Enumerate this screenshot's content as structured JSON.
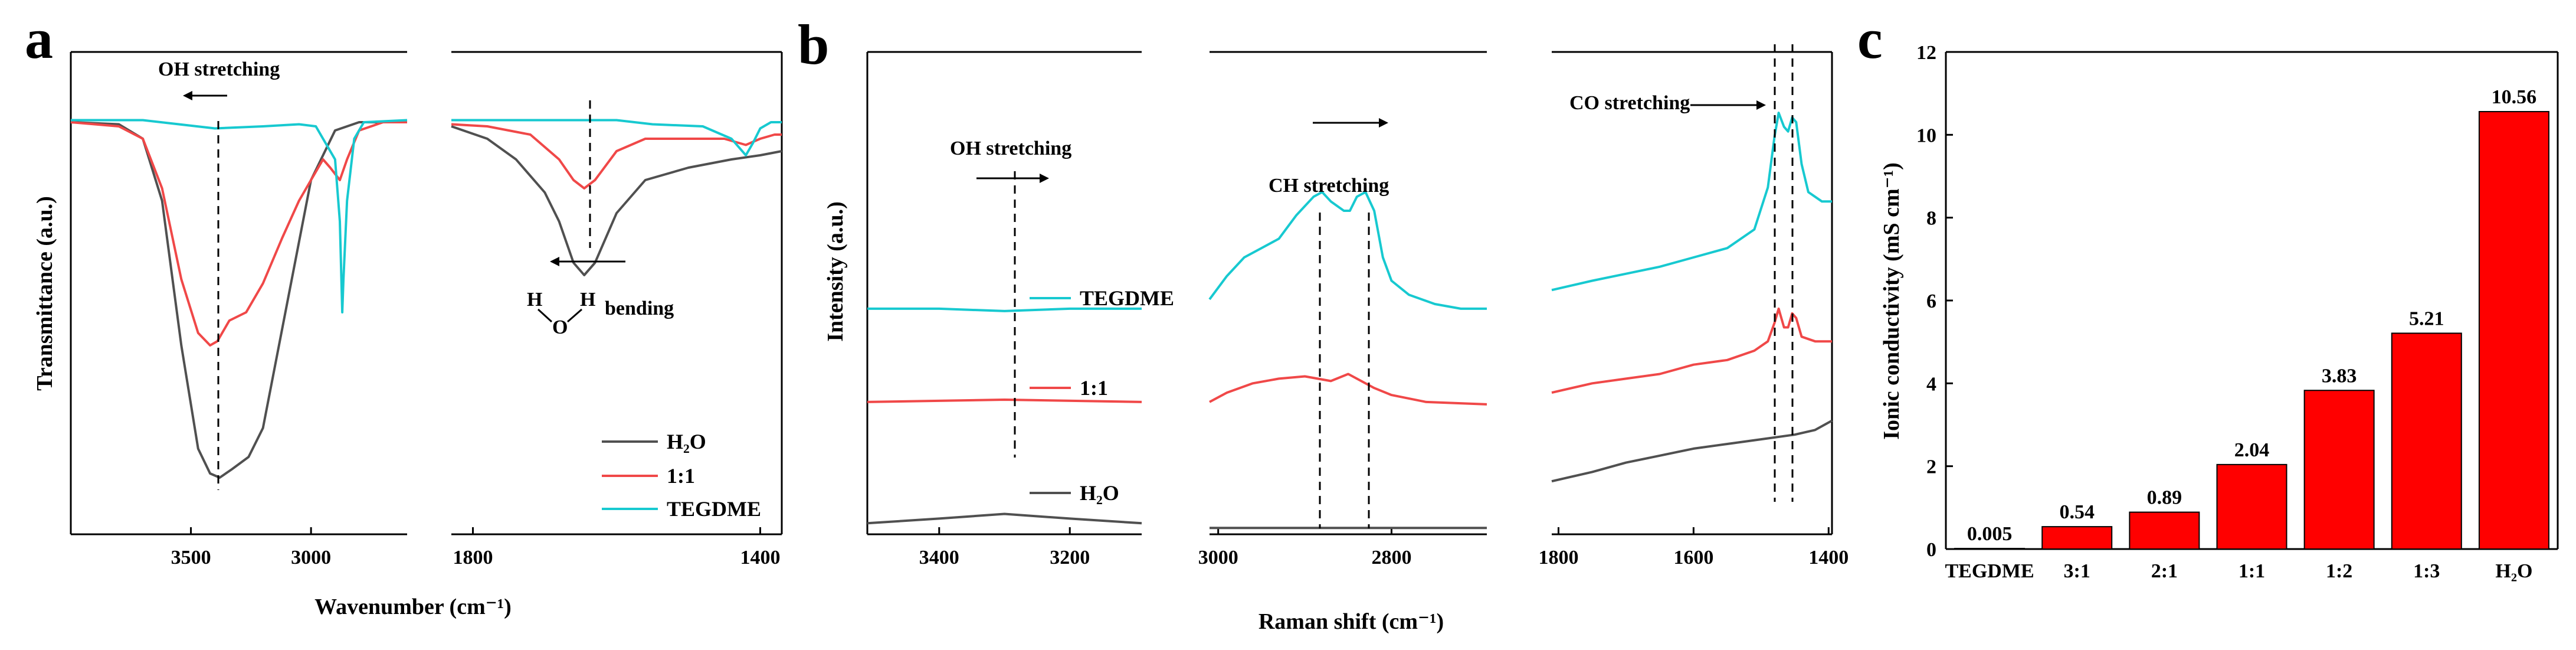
{
  "colors": {
    "h2o": "#505050",
    "mix": "#f04848",
    "tegdme": "#17c9d0",
    "bar": "#ff0000"
  },
  "panel_labels": [
    "a",
    "b",
    "c"
  ],
  "chart_data": [
    {
      "panel": "a",
      "type": "line",
      "title": "",
      "xlabel": "Wavenumber (cm⁻¹)",
      "ylabel": "Transmittance (a.u.)",
      "x_axis_reversed": true,
      "ranges": [
        [
          4000,
          2600
        ],
        [
          1830,
          1370
        ]
      ],
      "ticks": [
        [
          3500,
          3000
        ],
        [
          1800,
          1400
        ]
      ],
      "tick_labels": [
        [
          "3500",
          "3000"
        ],
        [
          "1800",
          "1400"
        ]
      ],
      "legend": [
        "H₂O",
        "1:1",
        "TEGDME"
      ],
      "legend_position": "bottom-right",
      "annotations": {
        "oh": "OH stretching",
        "bend": "bending",
        "h": "H",
        "o": "O"
      },
      "series": [
        {
          "name": "H2O",
          "segments": [
            [
              [
                4000,
                0.94
              ],
              [
                3800,
                0.935
              ],
              [
                3700,
                0.9
              ],
              [
                3620,
                0.75
              ],
              [
                3540,
                0.4
              ],
              [
                3470,
                0.15
              ],
              [
                3420,
                0.09
              ],
              [
                3380,
                0.08
              ],
              [
                3330,
                0.1
              ],
              [
                3260,
                0.13
              ],
              [
                3200,
                0.2
              ],
              [
                3100,
                0.5
              ],
              [
                3000,
                0.8
              ],
              [
                2900,
                0.92
              ],
              [
                2800,
                0.94
              ],
              [
                2600,
                0.94
              ]
            ],
            [
              [
                1830,
                0.93
              ],
              [
                1780,
                0.9
              ],
              [
                1740,
                0.85
              ],
              [
                1700,
                0.77
              ],
              [
                1680,
                0.7
              ],
              [
                1660,
                0.6
              ],
              [
                1645,
                0.57
              ],
              [
                1630,
                0.6
              ],
              [
                1600,
                0.72
              ],
              [
                1560,
                0.8
              ],
              [
                1500,
                0.83
              ],
              [
                1440,
                0.85
              ],
              [
                1400,
                0.86
              ],
              [
                1370,
                0.87
              ]
            ]
          ]
        },
        {
          "name": "1:1",
          "segments": [
            [
              [
                4000,
                0.94
              ],
              [
                3800,
                0.93
              ],
              [
                3700,
                0.9
              ],
              [
                3620,
                0.78
              ],
              [
                3540,
                0.56
              ],
              [
                3470,
                0.43
              ],
              [
                3420,
                0.4
              ],
              [
                3390,
                0.41
              ],
              [
                3340,
                0.46
              ],
              [
                3270,
                0.48
              ],
              [
                3200,
                0.55
              ],
              [
                3120,
                0.66
              ],
              [
                3050,
                0.75
              ],
              [
                3000,
                0.8
              ],
              [
                2950,
                0.85
              ],
              [
                2920,
                0.83
              ],
              [
                2880,
                0.8
              ],
              [
                2850,
                0.85
              ],
              [
                2800,
                0.92
              ],
              [
                2700,
                0.94
              ],
              [
                2600,
                0.94
              ]
            ],
            [
              [
                1830,
                0.935
              ],
              [
                1780,
                0.93
              ],
              [
                1720,
                0.91
              ],
              [
                1680,
                0.85
              ],
              [
                1660,
                0.8
              ],
              [
                1645,
                0.78
              ],
              [
                1630,
                0.8
              ],
              [
                1600,
                0.87
              ],
              [
                1560,
                0.9
              ],
              [
                1500,
                0.9
              ],
              [
                1450,
                0.9
              ],
              [
                1420,
                0.885
              ],
              [
                1400,
                0.9
              ],
              [
                1380,
                0.91
              ],
              [
                1370,
                0.91
              ]
            ]
          ]
        },
        {
          "name": "TEGDME",
          "segments": [
            [
              [
                4000,
                0.945
              ],
              [
                3700,
                0.945
              ],
              [
                3550,
                0.935
              ],
              [
                3400,
                0.925
              ],
              [
                3200,
                0.93
              ],
              [
                3050,
                0.935
              ],
              [
                2980,
                0.93
              ],
              [
                2950,
                0.9
              ],
              [
                2900,
                0.85
              ],
              [
                2880,
                0.7
              ],
              [
                2870,
                0.48
              ],
              [
                2865,
                0.56
              ],
              [
                2850,
                0.75
              ],
              [
                2820,
                0.9
              ],
              [
                2780,
                0.94
              ],
              [
                2600,
                0.945
              ]
            ],
            [
              [
                1830,
                0.945
              ],
              [
                1700,
                0.945
              ],
              [
                1600,
                0.945
              ],
              [
                1550,
                0.935
              ],
              [
                1480,
                0.93
              ],
              [
                1440,
                0.9
              ],
              [
                1420,
                0.86
              ],
              [
                1410,
                0.89
              ],
              [
                1400,
                0.925
              ],
              [
                1385,
                0.94
              ],
              [
                1370,
                0.94
              ]
            ]
          ]
        }
      ]
    },
    {
      "panel": "b",
      "type": "line",
      "title": "",
      "xlabel": "Raman shift (cm⁻¹)",
      "ylabel": "Intensity (a.u.)",
      "x_axis_reversed": true,
      "ranges": [
        [
          3510,
          3090
        ],
        [
          3010,
          2690
        ],
        [
          1810,
          1395
        ]
      ],
      "ticks": [
        [
          3400,
          3200
        ],
        [
          3000,
          2800
        ],
        [
          1800,
          1600,
          1400
        ]
      ],
      "tick_labels": [
        [
          "3400",
          "3200"
        ],
        [
          "3000",
          "2800"
        ],
        [
          "1800",
          "1600",
          "1400"
        ]
      ],
      "legend": [
        "TEGDME",
        "1:1",
        "H₂O"
      ],
      "annotations": {
        "oh": "OH stretching",
        "ch": "CH stretching",
        "co": "CO stretching"
      },
      "series": [
        {
          "name": "TEGDME",
          "segments": [
            [
              [
                3510,
                0.49
              ],
              [
                3400,
                0.49
              ],
              [
                3300,
                0.485
              ],
              [
                3200,
                0.49
              ],
              [
                3090,
                0.49
              ]
            ],
            [
              [
                3010,
                0.51
              ],
              [
                2990,
                0.56
              ],
              [
                2970,
                0.6
              ],
              [
                2950,
                0.62
              ],
              [
                2930,
                0.64
              ],
              [
                2910,
                0.69
              ],
              [
                2890,
                0.73
              ],
              [
                2880,
                0.74
              ],
              [
                2870,
                0.72
              ],
              [
                2855,
                0.7
              ],
              [
                2848,
                0.7
              ],
              [
                2840,
                0.73
              ],
              [
                2830,
                0.74
              ],
              [
                2820,
                0.7
              ],
              [
                2810,
                0.6
              ],
              [
                2800,
                0.55
              ],
              [
                2780,
                0.52
              ],
              [
                2750,
                0.5
              ],
              [
                2720,
                0.49
              ],
              [
                2690,
                0.49
              ]
            ],
            [
              [
                1810,
                0.53
              ],
              [
                1750,
                0.55
              ],
              [
                1700,
                0.565
              ],
              [
                1650,
                0.58
              ],
              [
                1600,
                0.6
              ],
              [
                1550,
                0.62
              ],
              [
                1510,
                0.66
              ],
              [
                1490,
                0.75
              ],
              [
                1480,
                0.86
              ],
              [
                1474,
                0.91
              ],
              [
                1466,
                0.88
              ],
              [
                1460,
                0.87
              ],
              [
                1454,
                0.9
              ],
              [
                1448,
                0.89
              ],
              [
                1440,
                0.8
              ],
              [
                1430,
                0.74
              ],
              [
                1420,
                0.73
              ],
              [
                1410,
                0.72
              ],
              [
                1395,
                0.72
              ]
            ]
          ]
        },
        {
          "name": "1:1",
          "segments": [
            [
              [
                3510,
                0.29
              ],
              [
                3300,
                0.295
              ],
              [
                3090,
                0.29
              ]
            ],
            [
              [
                3010,
                0.29
              ],
              [
                2990,
                0.31
              ],
              [
                2960,
                0.33
              ],
              [
                2930,
                0.34
              ],
              [
                2900,
                0.345
              ],
              [
                2870,
                0.335
              ],
              [
                2850,
                0.35
              ],
              [
                2840,
                0.34
              ],
              [
                2820,
                0.32
              ],
              [
                2800,
                0.305
              ],
              [
                2760,
                0.29
              ],
              [
                2690,
                0.285
              ]
            ],
            [
              [
                1810,
                0.31
              ],
              [
                1750,
                0.33
              ],
              [
                1700,
                0.34
              ],
              [
                1650,
                0.35
              ],
              [
                1600,
                0.37
              ],
              [
                1550,
                0.38
              ],
              [
                1510,
                0.4
              ],
              [
                1490,
                0.42
              ],
              [
                1480,
                0.46
              ],
              [
                1474,
                0.49
              ],
              [
                1466,
                0.45
              ],
              [
                1460,
                0.45
              ],
              [
                1454,
                0.48
              ],
              [
                1448,
                0.47
              ],
              [
                1440,
                0.43
              ],
              [
                1420,
                0.42
              ],
              [
                1395,
                0.42
              ]
            ]
          ]
        },
        {
          "name": "H2O",
          "segments": [
            [
              [
                3510,
                0.03
              ],
              [
                3400,
                0.04
              ],
              [
                3300,
                0.05
              ],
              [
                3200,
                0.04
              ],
              [
                3090,
                0.03
              ]
            ],
            [
              [
                3010,
                0.02
              ],
              [
                2900,
                0.02
              ],
              [
                2800,
                0.02
              ],
              [
                2690,
                0.02
              ]
            ],
            [
              [
                1810,
                0.12
              ],
              [
                1750,
                0.14
              ],
              [
                1700,
                0.16
              ],
              [
                1650,
                0.175
              ],
              [
                1600,
                0.19
              ],
              [
                1550,
                0.2
              ],
              [
                1500,
                0.21
              ],
              [
                1450,
                0.22
              ],
              [
                1420,
                0.23
              ],
              [
                1395,
                0.25
              ]
            ]
          ]
        }
      ]
    },
    {
      "panel": "c",
      "type": "bar",
      "title": "",
      "xlabel": "",
      "ylabel": "Ionic conductivity (mS cm⁻¹)",
      "ylim": [
        0,
        12
      ],
      "yticks": [
        0,
        2,
        4,
        6,
        8,
        10,
        12
      ],
      "ytick_labels": [
        "0",
        "2",
        "4",
        "6",
        "8",
        "10",
        "12"
      ],
      "categories": [
        "TEGDME",
        "3:1",
        "2:1",
        "1:1",
        "1:2",
        "1:3",
        "H₂O"
      ],
      "values": [
        0.005,
        0.54,
        0.89,
        2.04,
        3.83,
        5.21,
        10.56
      ],
      "value_labels": [
        "0.005",
        "0.54",
        "0.89",
        "2.04",
        "3.83",
        "5.21",
        "10.56"
      ]
    }
  ]
}
